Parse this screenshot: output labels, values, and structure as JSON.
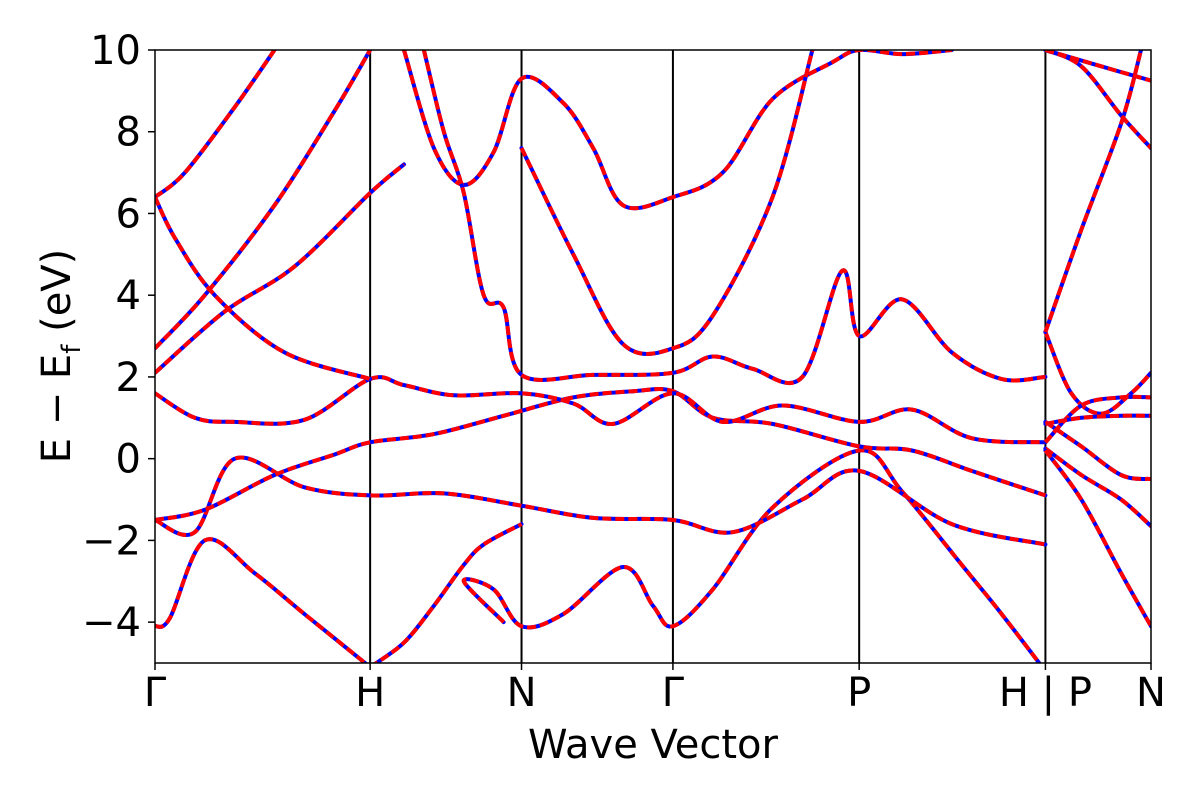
{
  "chart_data": {
    "type": "line",
    "title": "",
    "xlabel": "Wave Vector",
    "ylabel": "E − E_f (eV)",
    "ylabel_parts": {
      "main": "E − E",
      "sub": "f",
      "unit": " (eV)"
    },
    "ylim": [
      -5,
      10
    ],
    "yticks": [
      -4,
      -2,
      0,
      2,
      4,
      6,
      8,
      10
    ],
    "ytick_labels": [
      "−4",
      "−2",
      "0",
      "2",
      "4",
      "6",
      "8",
      "10"
    ],
    "xlim": [
      0,
      1
    ],
    "kpoints": [
      {
        "x": 0.0,
        "label": "Γ"
      },
      {
        "x": 0.216,
        "label": "H"
      },
      {
        "x": 0.368,
        "label": "N"
      },
      {
        "x": 0.52,
        "label": "Γ"
      },
      {
        "x": 0.707,
        "label": "P"
      },
      {
        "x": 0.894,
        "label": "H | P"
      },
      {
        "x": 1.0,
        "label": "N"
      }
    ],
    "grid": false,
    "legend": "none",
    "colors": {
      "series_a": "#0000ff",
      "series_b": "#ff0000"
    },
    "series": [
      {
        "values": [
          [
            0,
            -4.1
          ],
          [
            0.015,
            -3.9
          ],
          [
            0.05,
            -2.0
          ],
          [
            0.1,
            -2.8
          ],
          [
            0.15,
            -3.8
          ],
          [
            0.216,
            -5.1
          ]
        ]
      },
      {
        "values": [
          [
            0.216,
            -5.1
          ],
          [
            0.25,
            -4.5
          ],
          [
            0.28,
            -3.6
          ],
          [
            0.31,
            -2.6
          ],
          [
            0.33,
            -2.1
          ],
          [
            0.368,
            -1.6
          ]
        ]
      },
      {
        "values": [
          [
            0.35,
            -4.0
          ],
          [
            0.31,
            -3.0
          ],
          [
            0.34,
            -3.2
          ],
          [
            0.368,
            -4.1
          ],
          [
            0.41,
            -3.8
          ],
          [
            0.47,
            -2.65
          ],
          [
            0.5,
            -3.6
          ],
          [
            0.52,
            -4.1
          ],
          [
            0.56,
            -3.2
          ],
          [
            0.62,
            -1.2
          ],
          [
            0.707,
            0.2
          ],
          [
            0.75,
            -0.8
          ],
          [
            0.81,
            -2.6
          ],
          [
            0.85,
            -3.8
          ],
          [
            0.894,
            -5.2
          ]
        ]
      },
      {
        "values": [
          [
            0,
            -1.5
          ],
          [
            0.04,
            -1.8
          ],
          [
            0.08,
            0.0
          ],
          [
            0.15,
            -0.7
          ],
          [
            0.216,
            -0.9
          ],
          [
            0.29,
            -0.85
          ],
          [
            0.368,
            -1.15
          ],
          [
            0.44,
            -1.45
          ],
          [
            0.52,
            -1.5
          ],
          [
            0.58,
            -1.8
          ],
          [
            0.65,
            -1.0
          ],
          [
            0.707,
            -0.3
          ],
          [
            0.8,
            -1.6
          ],
          [
            0.894,
            -2.1
          ]
        ]
      },
      {
        "values": [
          [
            0,
            -1.5
          ],
          [
            0.05,
            -1.25
          ],
          [
            0.12,
            -0.4
          ],
          [
            0.18,
            0.1
          ],
          [
            0.216,
            0.4
          ],
          [
            0.28,
            0.6
          ],
          [
            0.35,
            1.05
          ],
          [
            0.42,
            1.5
          ],
          [
            0.48,
            1.65
          ],
          [
            0.52,
            1.65
          ],
          [
            0.56,
            1.0
          ],
          [
            0.62,
            0.85
          ],
          [
            0.707,
            0.3
          ],
          [
            0.76,
            0.2
          ],
          [
            0.82,
            -0.3
          ],
          [
            0.894,
            -0.9
          ]
        ]
      },
      {
        "values": [
          [
            0,
            1.6
          ],
          [
            0.04,
            1.0
          ],
          [
            0.08,
            0.9
          ],
          [
            0.15,
            0.95
          ],
          [
            0.216,
            1.95
          ],
          [
            0.25,
            1.8
          ],
          [
            0.3,
            1.55
          ],
          [
            0.368,
            1.6
          ],
          [
            0.42,
            1.35
          ],
          [
            0.46,
            0.85
          ],
          [
            0.52,
            1.6
          ],
          [
            0.57,
            0.9
          ],
          [
            0.63,
            1.3
          ],
          [
            0.707,
            0.9
          ],
          [
            0.76,
            1.2
          ],
          [
            0.82,
            0.5
          ],
          [
            0.894,
            0.4
          ]
        ]
      },
      {
        "values": [
          [
            0,
            2.1
          ],
          [
            0.07,
            3.6
          ],
          [
            0.14,
            4.7
          ],
          [
            0.216,
            6.5
          ],
          [
            0.25,
            7.2
          ]
        ]
      },
      {
        "values": [
          [
            0,
            2.7
          ],
          [
            0.05,
            4.0
          ],
          [
            0.12,
            6.2
          ],
          [
            0.18,
            8.5
          ],
          [
            0.216,
            10.0
          ]
        ]
      },
      {
        "values": [
          [
            0,
            6.4
          ],
          [
            0.03,
            7.0
          ],
          [
            0.08,
            8.6
          ],
          [
            0.12,
            10.0
          ]
        ]
      },
      {
        "values": [
          [
            0,
            6.4
          ],
          [
            0.02,
            5.4
          ],
          [
            0.06,
            4.0
          ],
          [
            0.13,
            2.6
          ],
          [
            0.216,
            1.95
          ]
        ]
      },
      {
        "values": [
          [
            0.25,
            10.0
          ],
          [
            0.28,
            7.6
          ],
          [
            0.31,
            6.7
          ],
          [
            0.34,
            7.5
          ],
          [
            0.368,
            9.3
          ],
          [
            0.41,
            8.7
          ],
          [
            0.44,
            7.6
          ],
          [
            0.47,
            6.2
          ],
          [
            0.52,
            6.4
          ],
          [
            0.57,
            7.0
          ],
          [
            0.62,
            8.8
          ],
          [
            0.68,
            9.7
          ],
          [
            0.707,
            10.0
          ],
          [
            0.75,
            9.9
          ],
          [
            0.8,
            10.0
          ]
        ]
      },
      {
        "values": [
          [
            0.27,
            10.0
          ],
          [
            0.29,
            8.0
          ],
          [
            0.31,
            6.5
          ],
          [
            0.33,
            4.0
          ],
          [
            0.35,
            3.7
          ],
          [
            0.368,
            2.05
          ],
          [
            0.44,
            2.05
          ],
          [
            0.52,
            2.1
          ],
          [
            0.56,
            2.5
          ],
          [
            0.6,
            2.2
          ],
          [
            0.65,
            2.0
          ],
          [
            0.69,
            4.6
          ],
          [
            0.707,
            3.0
          ],
          [
            0.75,
            3.9
          ],
          [
            0.8,
            2.6
          ],
          [
            0.85,
            1.95
          ],
          [
            0.894,
            2.0
          ]
        ]
      },
      {
        "values": [
          [
            0.368,
            7.6
          ],
          [
            0.42,
            5.0
          ],
          [
            0.47,
            2.8
          ],
          [
            0.52,
            2.7
          ],
          [
            0.56,
            3.5
          ],
          [
            0.62,
            6.4
          ],
          [
            0.66,
            10.0
          ]
        ]
      },
      {
        "values": [
          [
            0.894,
            3.1
          ],
          [
            0.92,
            1.6
          ],
          [
            0.95,
            1.1
          ],
          [
            0.98,
            1.6
          ],
          [
            1.0,
            2.1
          ]
        ]
      },
      {
        "values": [
          [
            0.894,
            3.1
          ],
          [
            0.93,
            5.6
          ],
          [
            0.97,
            8.2
          ],
          [
            0.99,
            10.0
          ]
        ]
      },
      {
        "values": [
          [
            0.894,
            0.25
          ],
          [
            0.93,
            -0.4
          ],
          [
            0.97,
            -1.0
          ],
          [
            1.0,
            -1.65
          ]
        ]
      },
      {
        "values": [
          [
            0.894,
            0.9
          ],
          [
            0.93,
            0.3
          ],
          [
            0.97,
            -0.4
          ],
          [
            1.0,
            -0.5
          ]
        ]
      },
      {
        "values": [
          [
            0.894,
            0.2
          ],
          [
            0.93,
            -1.0
          ],
          [
            0.97,
            -2.8
          ],
          [
            1.0,
            -4.1
          ]
        ]
      },
      {
        "values": [
          [
            0.894,
            0.4
          ],
          [
            0.93,
            1.3
          ],
          [
            0.97,
            1.5
          ],
          [
            1.0,
            1.5
          ]
        ]
      },
      {
        "values": [
          [
            0.894,
            0.85
          ],
          [
            0.93,
            1.0
          ],
          [
            0.97,
            1.05
          ],
          [
            1.0,
            1.05
          ]
        ]
      },
      {
        "values": [
          [
            0.894,
            10.0
          ],
          [
            0.93,
            9.6
          ],
          [
            0.97,
            8.4
          ],
          [
            1.0,
            7.6
          ]
        ]
      },
      {
        "values": [
          [
            0.894,
            10.0
          ],
          [
            0.95,
            9.6
          ],
          [
            1.0,
            9.25
          ]
        ]
      }
    ]
  }
}
